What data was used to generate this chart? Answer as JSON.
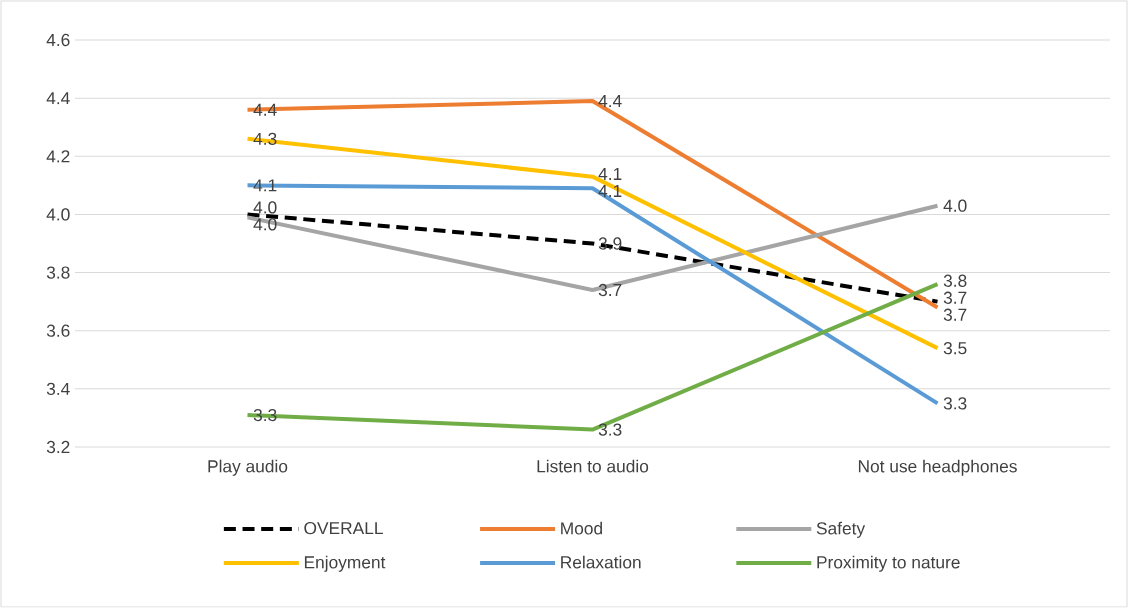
{
  "chart_data": {
    "type": "line",
    "categories": [
      "Play audio",
      "Listen to audio",
      "Not use headphones"
    ],
    "series": [
      {
        "name": "OVERALL",
        "color": "#000000",
        "line_style": "dashed",
        "values": [
          4.0,
          3.9,
          3.7
        ],
        "value_labels": [
          "4.0",
          "3.9",
          "3.7"
        ]
      },
      {
        "name": "Mood",
        "color": "#ed7d31",
        "line_style": "solid",
        "values": [
          4.36,
          4.39,
          3.68
        ],
        "value_labels": [
          "4.4",
          "4.4",
          "3.7"
        ]
      },
      {
        "name": "Safety",
        "color": "#a5a5a5",
        "line_style": "solid",
        "values": [
          3.99,
          3.74,
          4.03
        ],
        "value_labels": [
          "4.0",
          "3.7",
          "4.0"
        ]
      },
      {
        "name": "Enjoyment",
        "color": "#ffc000",
        "line_style": "solid",
        "values": [
          4.26,
          4.13,
          3.54
        ],
        "value_labels": [
          "4.3",
          "4.1",
          "3.5"
        ]
      },
      {
        "name": "Relaxation",
        "color": "#5b9bd5",
        "line_style": "solid",
        "values": [
          4.1,
          4.09,
          3.35
        ],
        "value_labels": [
          "4.1",
          "4.1",
          "3.3"
        ]
      },
      {
        "name": "Proximity to nature",
        "color": "#70ad47",
        "line_style": "solid",
        "values": [
          3.31,
          3.26,
          3.76
        ],
        "value_labels": [
          "3.3",
          "3.3",
          "3.8"
        ]
      }
    ],
    "ylim": [
      3.2,
      4.6
    ],
    "yticks": [
      {
        "value": 3.2,
        "label": "3.2"
      },
      {
        "value": 3.4,
        "label": "3.4"
      },
      {
        "value": 3.6,
        "label": "3.6"
      },
      {
        "value": 3.8,
        "label": "3.8"
      },
      {
        "value": 4.0,
        "label": "4.0"
      },
      {
        "value": 4.2,
        "label": "4.2"
      },
      {
        "value": 4.4,
        "label": "4.4"
      },
      {
        "value": 4.6,
        "label": "4.6"
      }
    ],
    "grid": "y",
    "legend": "bottom"
  }
}
